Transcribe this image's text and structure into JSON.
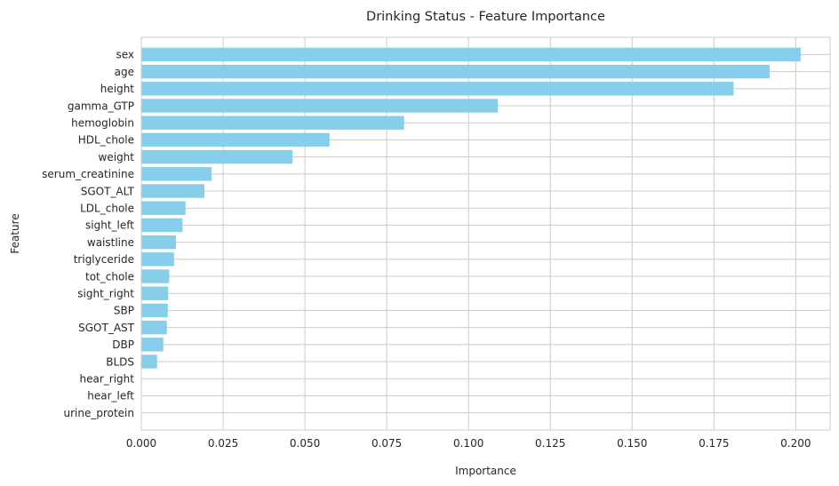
{
  "chart_data": {
    "type": "bar",
    "orientation": "horizontal",
    "title": "Drinking Status - Feature Importance",
    "xlabel": "Importance",
    "ylabel": "Feature",
    "xlim": [
      0,
      0.2105
    ],
    "xticks": [
      0.0,
      0.025,
      0.05,
      0.075,
      0.1,
      0.125,
      0.15,
      0.175,
      0.2
    ],
    "xtick_labels": [
      "0.000",
      "0.025",
      "0.050",
      "0.075",
      "0.100",
      "0.125",
      "0.150",
      "0.175",
      "0.200"
    ],
    "grid": true,
    "bar_color": "#87CEEB",
    "categories": [
      "sex",
      "age",
      "height",
      "gamma_GTP",
      "hemoglobin",
      "HDL_chole",
      "weight",
      "serum_creatinine",
      "SGOT_ALT",
      "LDL_chole",
      "sight_left",
      "waistline",
      "triglyceride",
      "tot_chole",
      "sight_right",
      "SBP",
      "SGOT_AST",
      "DBP",
      "BLDS",
      "hear_right",
      "hear_left",
      "urine_protein"
    ],
    "values": [
      0.2015,
      0.192,
      0.181,
      0.109,
      0.0803,
      0.0575,
      0.0462,
      0.0215,
      0.0193,
      0.0135,
      0.0126,
      0.0106,
      0.01,
      0.0085,
      0.0082,
      0.0081,
      0.0078,
      0.0067,
      0.0048,
      0.0,
      0.0,
      0.0
    ]
  }
}
